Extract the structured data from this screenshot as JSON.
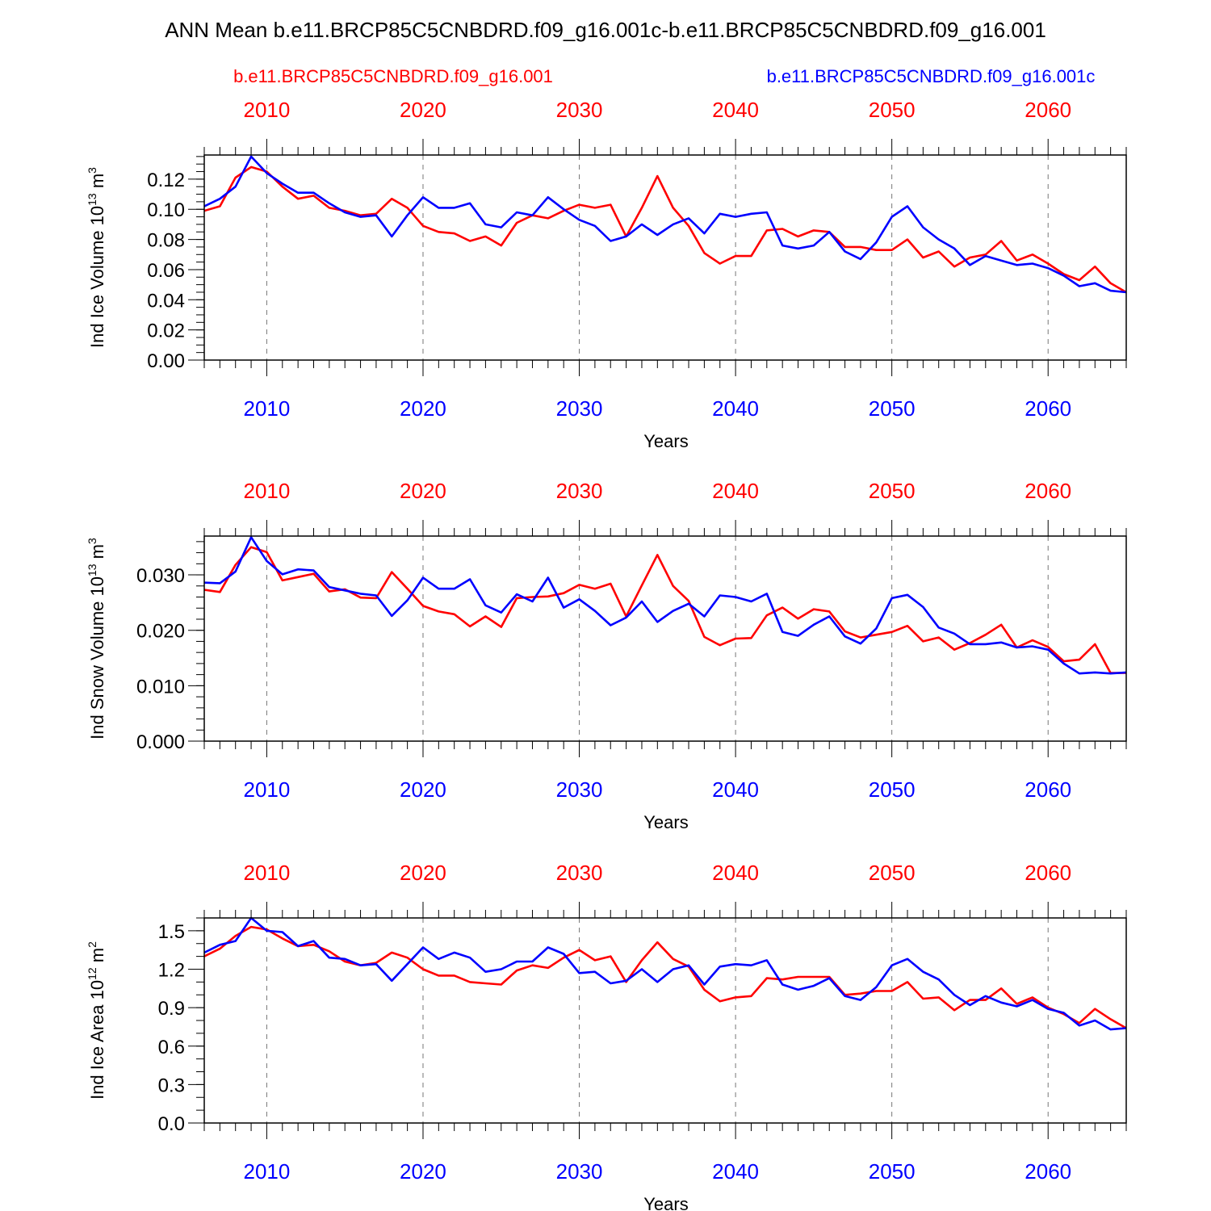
{
  "figure": {
    "title": "ANN Mean b.e11.BRCP85C5CNBDRD.f09_g16.001c-b.e11.BRCP85C5CNBDRD.f09_g16.001",
    "legend_red": "b.e11.BRCP85C5CNBDRD.f09_g16.001",
    "legend_blue": "b.e11.BRCP85C5CNBDRD.f09_g16.001c",
    "colors": {
      "red": "#ff0000",
      "blue": "#0000ff",
      "axis": "#000000",
      "grid": "#777777"
    }
  },
  "chart_data": [
    {
      "type": "line",
      "title": "",
      "xlabel": "Years",
      "ylabel": "Ind Ice Volume 10^13 m^3",
      "ylabel_base": "Ind Ice Volume 10",
      "ylabel_exp": "13",
      "ylabel_unit": " m",
      "ylabel_unit_exp": "3",
      "xlim": [
        2006,
        2065
      ],
      "ylim": [
        0,
        0.136
      ],
      "yticks": [
        0.0,
        0.02,
        0.04,
        0.06,
        0.08,
        0.1,
        0.12
      ],
      "ytick_labels": [
        "0.00",
        "0.02",
        "0.04",
        "0.06",
        "0.08",
        "0.10",
        "0.12"
      ],
      "yminor_step": 0.005,
      "xticks": [
        2010,
        2020,
        2030,
        2040,
        2050,
        2060
      ],
      "xtick_labels": [
        "2010",
        "2020",
        "2030",
        "2040",
        "2050",
        "2060"
      ],
      "grid": "vertical dashed at major x ticks",
      "x": [
        2006,
        2007,
        2008,
        2009,
        2010,
        2011,
        2012,
        2013,
        2014,
        2015,
        2016,
        2017,
        2018,
        2019,
        2020,
        2021,
        2022,
        2023,
        2024,
        2025,
        2026,
        2027,
        2028,
        2029,
        2030,
        2031,
        2032,
        2033,
        2034,
        2035,
        2036,
        2037,
        2038,
        2039,
        2040,
        2041,
        2042,
        2043,
        2044,
        2045,
        2046,
        2047,
        2048,
        2049,
        2050,
        2051,
        2052,
        2053,
        2054,
        2055,
        2056,
        2057,
        2058,
        2059,
        2060,
        2061,
        2062,
        2063,
        2064,
        2065
      ],
      "series": [
        {
          "name": "b.e11.BRCP85C5CNBDRD.f09_g16.001",
          "color": "#ff0000",
          "values": [
            0.099,
            0.102,
            0.121,
            0.128,
            0.125,
            0.115,
            0.107,
            0.109,
            0.101,
            0.099,
            0.096,
            0.097,
            0.107,
            0.101,
            0.089,
            0.085,
            0.084,
            0.079,
            0.082,
            0.076,
            0.091,
            0.096,
            0.094,
            0.099,
            0.103,
            0.101,
            0.103,
            0.082,
            0.101,
            0.122,
            0.101,
            0.089,
            0.071,
            0.064,
            0.069,
            0.069,
            0.086,
            0.087,
            0.082,
            0.086,
            0.085,
            0.075,
            0.075,
            0.073,
            0.073,
            0.08,
            0.068,
            0.072,
            0.062,
            0.068,
            0.07,
            0.079,
            0.066,
            0.07,
            0.064,
            0.057,
            0.053,
            0.062,
            0.051,
            0.045
          ]
        },
        {
          "name": "b.e11.BRCP85C5CNBDRD.f09_g16.001c",
          "color": "#0000ff",
          "values": [
            0.102,
            0.107,
            0.115,
            0.135,
            0.124,
            0.117,
            0.111,
            0.111,
            0.104,
            0.098,
            0.095,
            0.096,
            0.082,
            0.096,
            0.108,
            0.101,
            0.101,
            0.104,
            0.09,
            0.088,
            0.098,
            0.096,
            0.108,
            0.1,
            0.093,
            0.089,
            0.079,
            0.082,
            0.09,
            0.083,
            0.09,
            0.094,
            0.084,
            0.097,
            0.095,
            0.097,
            0.098,
            0.076,
            0.074,
            0.076,
            0.085,
            0.072,
            0.067,
            0.078,
            0.095,
            0.102,
            0.088,
            0.08,
            0.074,
            0.063,
            0.069,
            0.066,
            0.063,
            0.064,
            0.061,
            0.056,
            0.049,
            0.051,
            0.046,
            0.045
          ]
        }
      ]
    },
    {
      "type": "line",
      "title": "",
      "xlabel": "Years",
      "ylabel": "Ind Snow Volume 10^13 m^3",
      "ylabel_base": "Ind Snow Volume 10",
      "ylabel_exp": "13",
      "ylabel_unit": " m",
      "ylabel_unit_exp": "3",
      "xlim": [
        2006,
        2065
      ],
      "ylim": [
        0,
        0.037
      ],
      "yticks": [
        0.0,
        0.01,
        0.02,
        0.03
      ],
      "ytick_labels": [
        "0.000",
        "0.010",
        "0.020",
        "0.030"
      ],
      "yminor_step": 0.002,
      "xticks": [
        2010,
        2020,
        2030,
        2040,
        2050,
        2060
      ],
      "xtick_labels": [
        "2010",
        "2020",
        "2030",
        "2040",
        "2050",
        "2060"
      ],
      "grid": "vertical dashed at major x ticks",
      "x": [
        2006,
        2007,
        2008,
        2009,
        2010,
        2011,
        2012,
        2013,
        2014,
        2015,
        2016,
        2017,
        2018,
        2019,
        2020,
        2021,
        2022,
        2023,
        2024,
        2025,
        2026,
        2027,
        2028,
        2029,
        2030,
        2031,
        2032,
        2033,
        2034,
        2035,
        2036,
        2037,
        2038,
        2039,
        2040,
        2041,
        2042,
        2043,
        2044,
        2045,
        2046,
        2047,
        2048,
        2049,
        2050,
        2051,
        2052,
        2053,
        2054,
        2055,
        2056,
        2057,
        2058,
        2059,
        2060,
        2061,
        2062,
        2063,
        2064,
        2065
      ],
      "series": [
        {
          "name": "b.e11.BRCP85C5CNBDRD.f09_g16.001",
          "color": "#ff0000",
          "values": [
            0.0273,
            0.0269,
            0.0318,
            0.035,
            0.0341,
            0.029,
            0.0296,
            0.0302,
            0.027,
            0.0274,
            0.0259,
            0.0258,
            0.0305,
            0.0275,
            0.0244,
            0.0234,
            0.0229,
            0.0207,
            0.0225,
            0.0206,
            0.0258,
            0.026,
            0.0261,
            0.0267,
            0.0282,
            0.0275,
            0.0284,
            0.0225,
            0.0281,
            0.0336,
            0.028,
            0.0253,
            0.0188,
            0.0173,
            0.0185,
            0.0186,
            0.0227,
            0.0241,
            0.0221,
            0.0238,
            0.0234,
            0.0198,
            0.0187,
            0.0192,
            0.0197,
            0.0208,
            0.018,
            0.0187,
            0.0165,
            0.0177,
            0.0192,
            0.021,
            0.0169,
            0.0182,
            0.017,
            0.0144,
            0.0147,
            0.0175,
            0.0123,
            0.0123
          ]
        },
        {
          "name": "b.e11.BRCP85C5CNBDRD.f09_g16.001c",
          "color": "#0000ff",
          "values": [
            0.0286,
            0.0285,
            0.0306,
            0.0368,
            0.0325,
            0.0301,
            0.031,
            0.0308,
            0.0278,
            0.0272,
            0.0266,
            0.0263,
            0.0226,
            0.0254,
            0.0295,
            0.0275,
            0.0275,
            0.0292,
            0.0245,
            0.0232,
            0.0265,
            0.0252,
            0.0295,
            0.0241,
            0.0256,
            0.0235,
            0.0209,
            0.0223,
            0.0252,
            0.0215,
            0.0235,
            0.0248,
            0.0225,
            0.0263,
            0.026,
            0.0252,
            0.0266,
            0.0197,
            0.019,
            0.021,
            0.0225,
            0.0189,
            0.0176,
            0.0203,
            0.0258,
            0.0264,
            0.0242,
            0.0205,
            0.0194,
            0.0175,
            0.0175,
            0.0178,
            0.0169,
            0.0171,
            0.0165,
            0.014,
            0.0122,
            0.0124,
            0.0122,
            0.0124
          ]
        }
      ]
    },
    {
      "type": "line",
      "title": "",
      "xlabel": "Years",
      "ylabel": "Ind Ice Area 10^12 m^2",
      "ylabel_base": "Ind Ice Area 10",
      "ylabel_exp": "12",
      "ylabel_unit": " m",
      "ylabel_unit_exp": "2",
      "xlim": [
        2006,
        2065
      ],
      "ylim": [
        0,
        1.6
      ],
      "yticks": [
        0.0,
        0.3,
        0.6,
        0.9,
        1.2,
        1.5
      ],
      "ytick_labels": [
        "0.0",
        "0.3",
        "0.6",
        "0.9",
        "1.2",
        "1.5"
      ],
      "yminor_step": 0.1,
      "xticks": [
        2010,
        2020,
        2030,
        2040,
        2050,
        2060
      ],
      "xtick_labels": [
        "2010",
        "2020",
        "2030",
        "2040",
        "2050",
        "2060"
      ],
      "grid": "vertical dashed at major x ticks",
      "x": [
        2006,
        2007,
        2008,
        2009,
        2010,
        2011,
        2012,
        2013,
        2014,
        2015,
        2016,
        2017,
        2018,
        2019,
        2020,
        2021,
        2022,
        2023,
        2024,
        2025,
        2026,
        2027,
        2028,
        2029,
        2030,
        2031,
        2032,
        2033,
        2034,
        2035,
        2036,
        2037,
        2038,
        2039,
        2040,
        2041,
        2042,
        2043,
        2044,
        2045,
        2046,
        2047,
        2048,
        2049,
        2050,
        2051,
        2052,
        2053,
        2054,
        2055,
        2056,
        2057,
        2058,
        2059,
        2060,
        2061,
        2062,
        2063,
        2064,
        2065
      ],
      "series": [
        {
          "name": "b.e11.BRCP85C5CNBDRD.f09_g16.001",
          "color": "#ff0000",
          "values": [
            1.3,
            1.36,
            1.46,
            1.53,
            1.51,
            1.44,
            1.38,
            1.39,
            1.34,
            1.26,
            1.23,
            1.25,
            1.33,
            1.29,
            1.2,
            1.15,
            1.15,
            1.1,
            1.09,
            1.08,
            1.19,
            1.23,
            1.21,
            1.29,
            1.35,
            1.27,
            1.3,
            1.1,
            1.27,
            1.41,
            1.28,
            1.22,
            1.04,
            0.95,
            0.98,
            0.99,
            1.13,
            1.12,
            1.14,
            1.14,
            1.14,
            1.0,
            1.01,
            1.03,
            1.03,
            1.1,
            0.97,
            0.98,
            0.88,
            0.96,
            0.96,
            1.05,
            0.93,
            0.98,
            0.9,
            0.85,
            0.78,
            0.89,
            0.81,
            0.74
          ]
        },
        {
          "name": "b.e11.BRCP85C5CNBDRD.f09_g16.001c",
          "color": "#0000ff",
          "values": [
            1.33,
            1.39,
            1.42,
            1.6,
            1.5,
            1.49,
            1.38,
            1.42,
            1.29,
            1.28,
            1.23,
            1.24,
            1.11,
            1.24,
            1.37,
            1.28,
            1.33,
            1.29,
            1.18,
            1.2,
            1.26,
            1.26,
            1.37,
            1.32,
            1.17,
            1.18,
            1.09,
            1.11,
            1.2,
            1.1,
            1.2,
            1.23,
            1.08,
            1.22,
            1.24,
            1.23,
            1.27,
            1.08,
            1.04,
            1.07,
            1.13,
            0.99,
            0.96,
            1.06,
            1.23,
            1.28,
            1.18,
            1.12,
            1.0,
            0.92,
            0.99,
            0.94,
            0.91,
            0.96,
            0.89,
            0.86,
            0.76,
            0.8,
            0.73,
            0.74
          ]
        }
      ]
    }
  ]
}
